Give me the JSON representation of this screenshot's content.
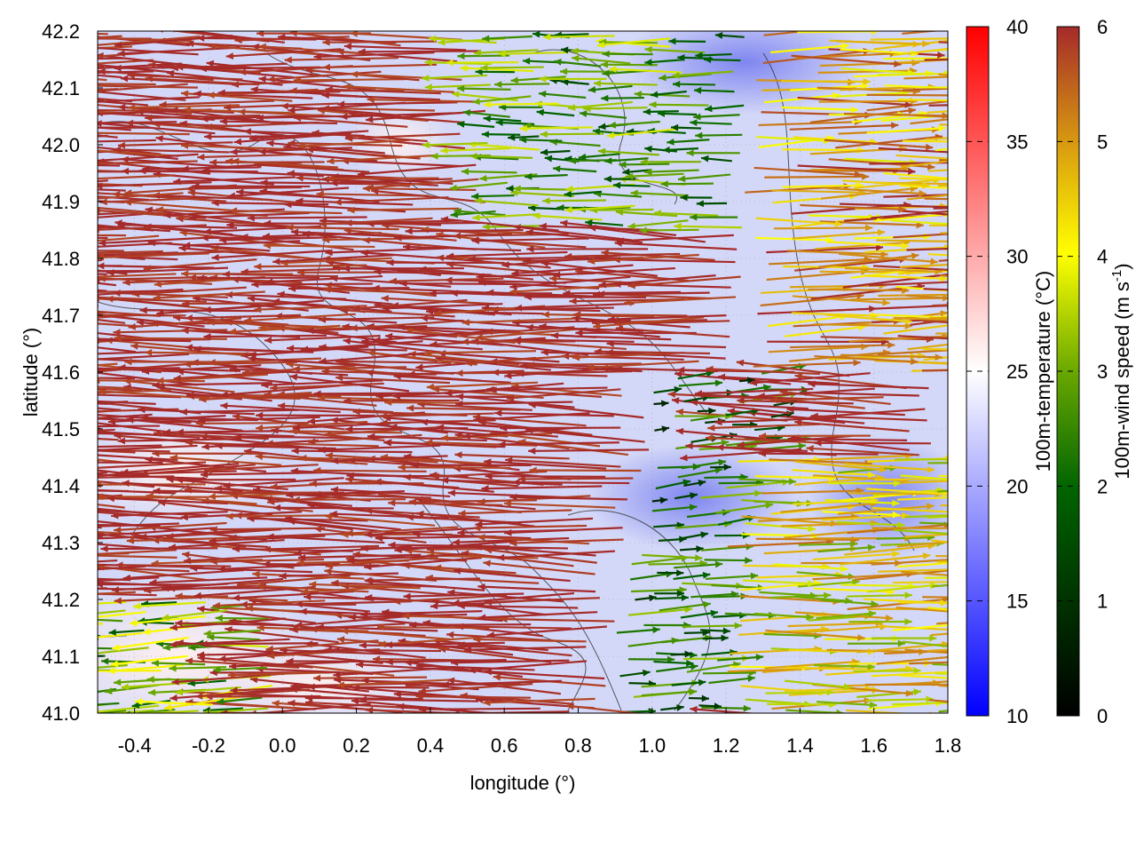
{
  "chart_data": {
    "type": "vector-field",
    "xlabel": "longitude (°)",
    "ylabel": "latitude (°)",
    "xlim": [
      -0.5,
      1.8
    ],
    "ylim": [
      41.0,
      42.2
    ],
    "xticks": [
      "-0.4",
      "-0.2",
      "0.0",
      "0.2",
      "0.4",
      "0.6",
      "0.8",
      "1.0",
      "1.2",
      "1.4",
      "1.6",
      "1.8"
    ],
    "xtick_values": [
      -0.4,
      -0.2,
      0.0,
      0.2,
      0.4,
      0.6,
      0.8,
      1.0,
      1.2,
      1.4,
      1.6,
      1.8
    ],
    "yticks": [
      "41.0",
      "41.1",
      "41.2",
      "41.3",
      "41.4",
      "41.5",
      "41.6",
      "41.7",
      "41.8",
      "41.9",
      "42.0",
      "42.1",
      "42.2"
    ],
    "ytick_values": [
      41.0,
      41.1,
      41.2,
      41.3,
      41.4,
      41.5,
      41.6,
      41.7,
      41.8,
      41.9,
      42.0,
      42.1,
      42.2
    ],
    "grid": true,
    "temperature_colorbar": {
      "label": "100m-temperature (°C)",
      "range": [
        10,
        40
      ],
      "ticks": [
        "10",
        "15",
        "20",
        "25",
        "30",
        "35",
        "40"
      ],
      "tick_values": [
        10,
        15,
        20,
        25,
        30,
        35,
        40
      ],
      "colors": [
        "#0000ff",
        "#ffffff",
        "#ff0000"
      ]
    },
    "wind_colorbar": {
      "label": "100m-wind speed (m s",
      "label_sup": "-1",
      "label_end": ")",
      "range": [
        0,
        6
      ],
      "ticks": [
        "0",
        "1",
        "2",
        "3",
        "4",
        "5",
        "6"
      ],
      "tick_values": [
        0,
        1,
        2,
        3,
        4,
        5,
        6
      ],
      "colors": [
        "#000000",
        "#006400",
        "#ffff00",
        "#d89a10",
        "#a52a2a"
      ]
    },
    "wind_regions": [
      {
        "lon": [
          -0.5,
          1.8
        ],
        "lat": [
          41.0,
          42.2
        ],
        "speed": 6,
        "dir": 178
      },
      {
        "lon": [
          0.55,
          1.25
        ],
        "lat": [
          41.85,
          42.2
        ],
        "speed": 2.6,
        "dir": 180
      },
      {
        "lon": [
          1.25,
          1.8
        ],
        "lat": [
          41.6,
          42.2
        ],
        "speed": 5,
        "dir": 2
      },
      {
        "lon": [
          1.0,
          1.35
        ],
        "lat": [
          41.25,
          41.6
        ],
        "speed": 2,
        "dir": 10
      },
      {
        "lon": [
          1.2,
          1.8
        ],
        "lat": [
          41.0,
          41.45
        ],
        "speed": 4.2,
        "dir": 0
      },
      {
        "lon": [
          0.9,
          1.2
        ],
        "lat": [
          41.0,
          41.3
        ],
        "speed": 2.2,
        "dir": 5
      },
      {
        "lon": [
          -0.5,
          0.0
        ],
        "lat": [
          41.0,
          41.2
        ],
        "speed": 3,
        "dir": 185
      }
    ]
  }
}
